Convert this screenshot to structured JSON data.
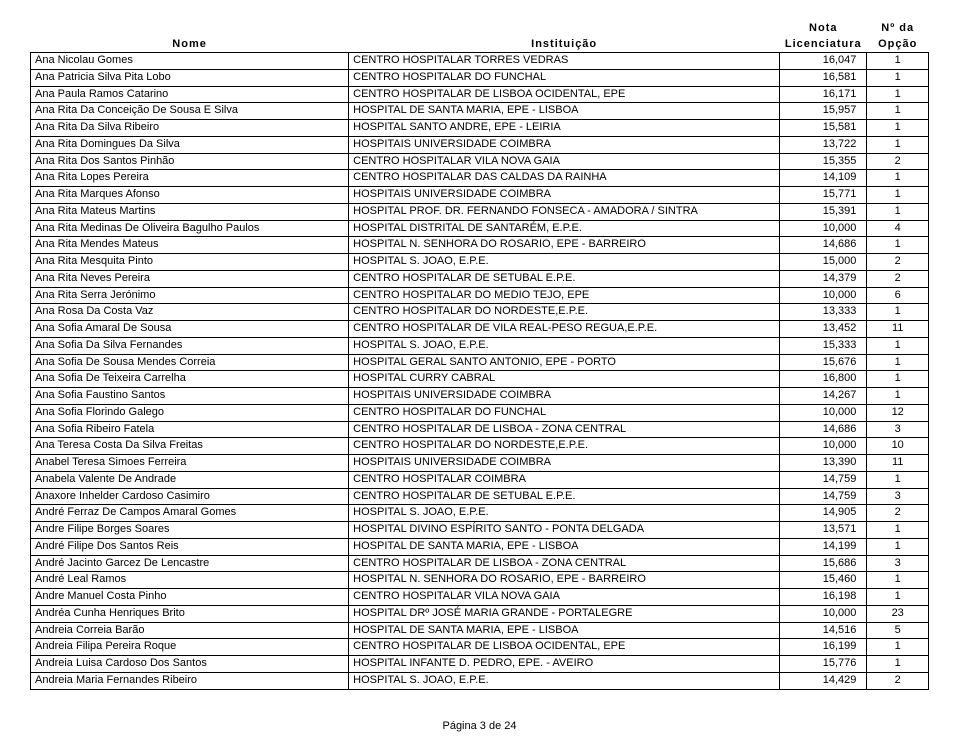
{
  "headers": {
    "nome": "Nome",
    "inst": "Instituição",
    "nota_l1": "Nota",
    "nota_l2": "Licenciatura",
    "opc_l1": "Nº da",
    "opc_l2": "Opção"
  },
  "rows": [
    {
      "nome": "Ana Nicolau Gomes",
      "inst": "CENTRO HOSPITALAR TORRES VEDRAS",
      "nota": "16,047",
      "opc": "1"
    },
    {
      "nome": "Ana Patricia Silva Pita Lobo",
      "inst": "CENTRO HOSPITALAR DO FUNCHAL",
      "nota": "16,581",
      "opc": "1"
    },
    {
      "nome": "Ana Paula Ramos Catarino",
      "inst": "CENTRO HOSPITALAR DE LISBOA OCIDENTAL, EPE",
      "nota": "16,171",
      "opc": "1"
    },
    {
      "nome": "Ana Rita Da Conceição De Sousa E Silva",
      "inst": "HOSPITAL DE SANTA MARIA, EPE - LISBOA",
      "nota": "15,957",
      "opc": "1"
    },
    {
      "nome": "Ana Rita Da Silva Ribeiro",
      "inst": "HOSPITAL SANTO ANDRE, EPE - LEIRIA",
      "nota": "15,581",
      "opc": "1"
    },
    {
      "nome": "Ana Rita Domingues Da Silva",
      "inst": "HOSPITAIS UNIVERSIDADE COIMBRA",
      "nota": "13,722",
      "opc": "1"
    },
    {
      "nome": "Ana Rita Dos Santos Pinhão",
      "inst": "CENTRO HOSPITALAR VILA NOVA GAIA",
      "nota": "15,355",
      "opc": "2"
    },
    {
      "nome": "Ana Rita Lopes Pereira",
      "inst": "CENTRO HOSPITALAR DAS CALDAS DA RAINHA",
      "nota": "14,109",
      "opc": "1"
    },
    {
      "nome": "Ana Rita Marques Afonso",
      "inst": "HOSPITAIS UNIVERSIDADE COIMBRA",
      "nota": "15,771",
      "opc": "1"
    },
    {
      "nome": "Ana Rita Mateus Martins",
      "inst": "HOSPITAL PROF. DR. FERNANDO FONSECA - AMADORA / SINTRA",
      "nota": "15,391",
      "opc": "1"
    },
    {
      "nome": "Ana Rita Medinas De Oliveira Bagulho Paulos",
      "inst": "HOSPITAL DISTRITAL DE SANTARÉM, E.P.E.",
      "nota": "10,000",
      "opc": "4"
    },
    {
      "nome": "Ana Rita Mendes Mateus",
      "inst": "HOSPITAL N. SENHORA DO ROSARIO, EPE - BARREIRO",
      "nota": "14,686",
      "opc": "1"
    },
    {
      "nome": "Ana Rita Mesquita Pinto",
      "inst": "HOSPITAL S. JOAO, E.P.E.",
      "nota": "15,000",
      "opc": "2"
    },
    {
      "nome": "Ana Rita Neves Pereira",
      "inst": "CENTRO HOSPITALAR DE SETUBAL E.P.E.",
      "nota": "14,379",
      "opc": "2"
    },
    {
      "nome": "Ana Rita Serra Jerónimo",
      "inst": "CENTRO HOSPITALAR DO MEDIO TEJO, EPE",
      "nota": "10,000",
      "opc": "6"
    },
    {
      "nome": "Ana Rosa Da Costa Vaz",
      "inst": "CENTRO HOSPITALAR DO NORDESTE,E.P.E.",
      "nota": "13,333",
      "opc": "1"
    },
    {
      "nome": "Ana Sofia Amaral De Sousa",
      "inst": "CENTRO HOSPITALAR DE VILA REAL-PESO REGUA,E.P.E.",
      "nota": "13,452",
      "opc": "11"
    },
    {
      "nome": "Ana Sofia Da Silva Fernandes",
      "inst": "HOSPITAL S. JOAO, E.P.E.",
      "nota": "15,333",
      "opc": "1"
    },
    {
      "nome": "Ana Sofia De Sousa Mendes Correia",
      "inst": "HOSPITAL GERAL SANTO ANTONIO, EPE - PORTO",
      "nota": "15,676",
      "opc": "1"
    },
    {
      "nome": "Ana Sofia De Teixeira Carrelha",
      "inst": "HOSPITAL CURRY CABRAL",
      "nota": "16,800",
      "opc": "1"
    },
    {
      "nome": "Ana Sofia Faustino Santos",
      "inst": "HOSPITAIS UNIVERSIDADE COIMBRA",
      "nota": "14,267",
      "opc": "1"
    },
    {
      "nome": "Ana Sofia Florindo Galego",
      "inst": "CENTRO HOSPITALAR DO FUNCHAL",
      "nota": "10,000",
      "opc": "12"
    },
    {
      "nome": "Ana Sofia Ribeiro Fatela",
      "inst": "CENTRO HOSPITALAR DE LISBOA - ZONA CENTRAL",
      "nota": "14,686",
      "opc": "3"
    },
    {
      "nome": "Ana Teresa Costa Da Silva Freitas",
      "inst": "CENTRO HOSPITALAR DO NORDESTE,E.P.E.",
      "nota": "10,000",
      "opc": "10"
    },
    {
      "nome": "Anabel Teresa Simoes Ferreira",
      "inst": "HOSPITAIS UNIVERSIDADE COIMBRA",
      "nota": "13,390",
      "opc": "11"
    },
    {
      "nome": "Anabela Valente De Andrade",
      "inst": "CENTRO HOSPITALAR COIMBRA",
      "nota": "14,759",
      "opc": "1"
    },
    {
      "nome": "Anaxore Inhelder Cardoso Casimiro",
      "inst": "CENTRO HOSPITALAR DE SETUBAL E.P.E.",
      "nota": "14,759",
      "opc": "3"
    },
    {
      "nome": "André Ferraz De Campos Amaral Gomes",
      "inst": "HOSPITAL S. JOAO, E.P.E.",
      "nota": "14,905",
      "opc": "2"
    },
    {
      "nome": "Andre Filipe Borges Soares",
      "inst": "HOSPITAL DIVINO ESPÍRITO SANTO - PONTA DELGADA",
      "nota": "13,571",
      "opc": "1"
    },
    {
      "nome": "André Filipe Dos Santos Reis",
      "inst": "HOSPITAL DE SANTA MARIA, EPE - LISBOA",
      "nota": "14,199",
      "opc": "1"
    },
    {
      "nome": "André Jacinto Garcez De Lencastre",
      "inst": "CENTRO HOSPITALAR DE LISBOA - ZONA CENTRAL",
      "nota": "15,686",
      "opc": "3"
    },
    {
      "nome": "André Leal Ramos",
      "inst": "HOSPITAL N. SENHORA DO ROSARIO, EPE - BARREIRO",
      "nota": "15,460",
      "opc": "1"
    },
    {
      "nome": "Andre Manuel Costa Pinho",
      "inst": "CENTRO HOSPITALAR VILA NOVA GAIA",
      "nota": "16,198",
      "opc": "1"
    },
    {
      "nome": "Andréa Cunha Henriques Brito",
      "inst": "HOSPITAL DRº JOSÉ MARIA GRANDE - PORTALEGRE",
      "nota": "10,000",
      "opc": "23"
    },
    {
      "nome": "Andreia Correia Barão",
      "inst": "HOSPITAL DE SANTA MARIA, EPE - LISBOA",
      "nota": "14,516",
      "opc": "5"
    },
    {
      "nome": "Andreia Filipa Pereira Roque",
      "inst": "CENTRO HOSPITALAR DE LISBOA OCIDENTAL, EPE",
      "nota": "16,199",
      "opc": "1"
    },
    {
      "nome": "Andreia Luisa Cardoso Dos Santos",
      "inst": "HOSPITAL INFANTE D. PEDRO, EPE. - AVEIRO",
      "nota": "15,776",
      "opc": "1"
    },
    {
      "nome": "Andreia Maria Fernandes Ribeiro",
      "inst": "HOSPITAL S. JOAO, E.P.E.",
      "nota": "14,429",
      "opc": "2"
    }
  ],
  "footer": "Página 3 de 24"
}
